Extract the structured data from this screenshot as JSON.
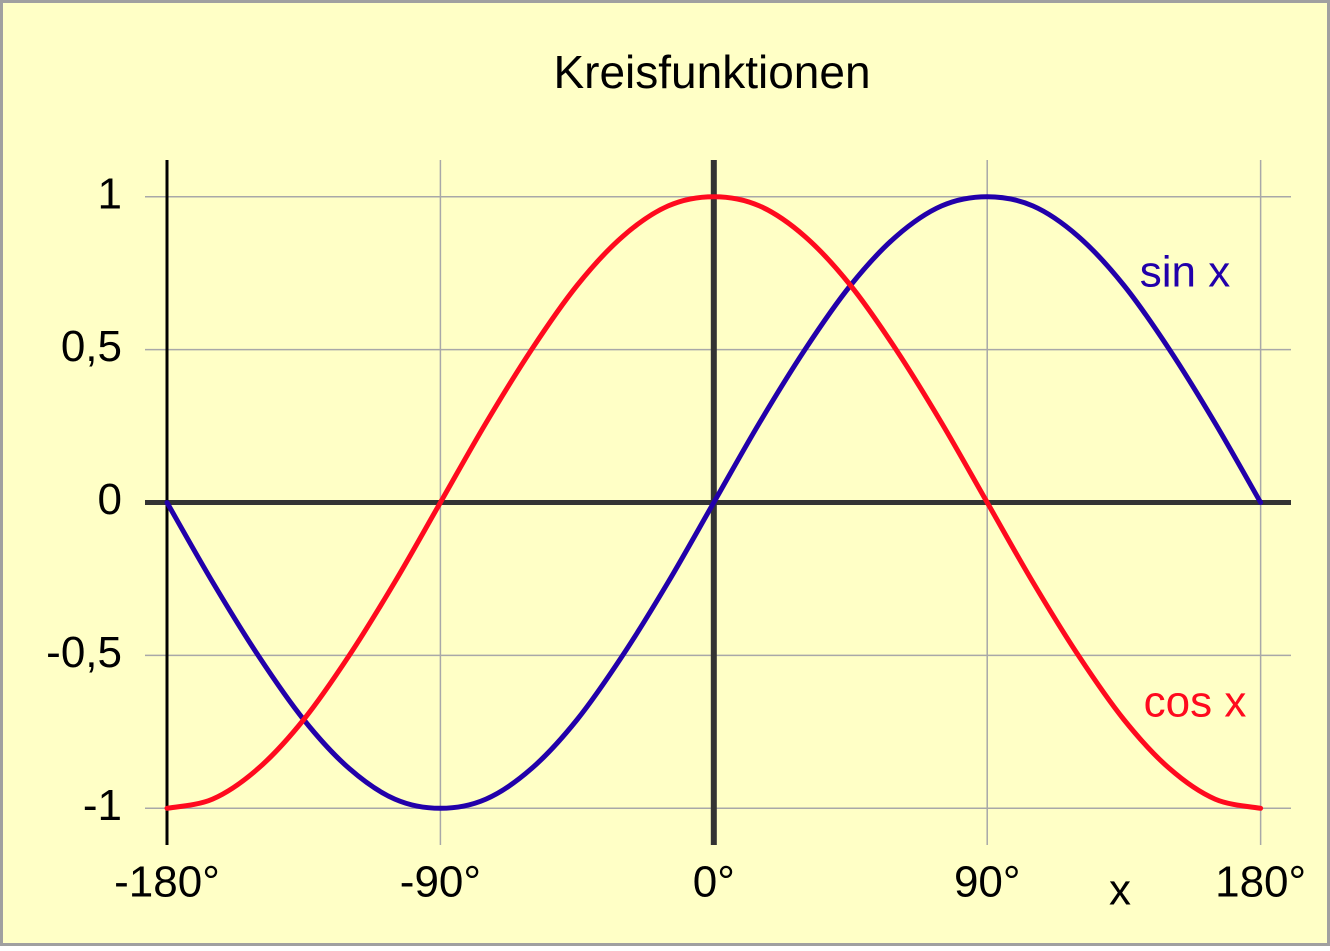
{
  "chart_data": {
    "type": "line",
    "title": "Kreisfunktionen",
    "x_label": "x",
    "x": [
      -180,
      -165,
      -150,
      -135,
      -120,
      -105,
      -90,
      -75,
      -60,
      -45,
      -30,
      -15,
      0,
      15,
      30,
      45,
      60,
      75,
      90,
      105,
      120,
      135,
      150,
      165,
      180
    ],
    "series": [
      {
        "name": "sin x",
        "color": "#2200aa",
        "values": [
          0,
          -0.26,
          -0.5,
          -0.71,
          -0.87,
          -0.97,
          -1,
          -0.97,
          -0.87,
          -0.71,
          -0.5,
          -0.26,
          0,
          0.26,
          0.5,
          0.71,
          0.87,
          0.97,
          1,
          0.97,
          0.87,
          0.71,
          0.5,
          0.26,
          0
        ]
      },
      {
        "name": "cos x",
        "color": "#ff0a1e",
        "values": [
          -1,
          -0.97,
          -0.87,
          -0.71,
          -0.5,
          -0.26,
          0,
          0.26,
          0.5,
          0.71,
          0.87,
          0.97,
          1,
          0.97,
          0.87,
          0.71,
          0.5,
          0.26,
          0,
          -0.26,
          -0.5,
          -0.71,
          -0.87,
          -0.97,
          -1
        ]
      }
    ],
    "xlim": [
      -180,
      190
    ],
    "ylim": [
      -1.12,
      1.12
    ],
    "xticks": [
      {
        "value": -180,
        "label": "-180°"
      },
      {
        "value": -90,
        "label": "-90°"
      },
      {
        "value": 0,
        "label": "0°"
      },
      {
        "value": 90,
        "label": "90°"
      },
      {
        "value": 180,
        "label": "180°"
      }
    ],
    "yticks": [
      -1,
      {
        "value": -0.5,
        "label": "-0,5"
      },
      0,
      {
        "value": 0.5,
        "label": "0,5"
      },
      1
    ],
    "grid": true
  }
}
